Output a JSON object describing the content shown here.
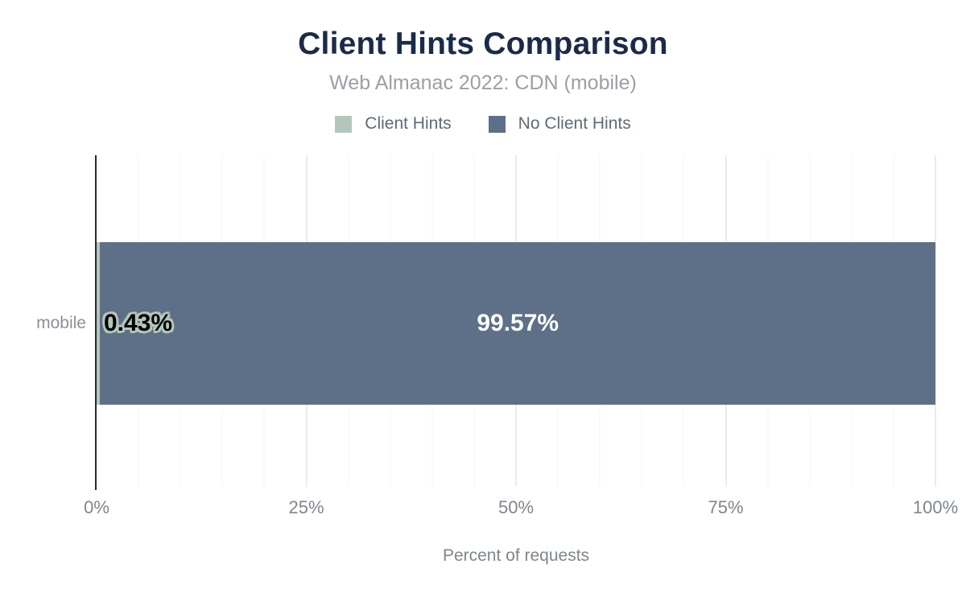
{
  "header": {
    "title": "Client Hints Comparison",
    "subtitle": "Web Almanac 2022: CDN (mobile)"
  },
  "legend": [
    {
      "label": "Client Hints",
      "color": "#b3c6bc"
    },
    {
      "label": "No Client Hints",
      "color": "#5e7087"
    }
  ],
  "chart_data": {
    "type": "bar",
    "orientation": "horizontal",
    "stacked": true,
    "title": "Client Hints Comparison",
    "subtitle": "Web Almanac 2022: CDN (mobile)",
    "categories": [
      "mobile"
    ],
    "series": [
      {
        "name": "Client Hints",
        "color": "#b3c6bc",
        "values": [
          0.43
        ],
        "labels": [
          "0.43%"
        ]
      },
      {
        "name": "No Client Hints",
        "color": "#5e7087",
        "values": [
          99.57
        ],
        "labels": [
          "99.57%"
        ]
      }
    ],
    "xlabel": "Percent of requests",
    "ylabel": "",
    "xlim": [
      0,
      100
    ],
    "xticks": [
      "0%",
      "25%",
      "50%",
      "75%",
      "100%"
    ],
    "grid": "vertical minor every 5%, major every 25%",
    "legend_position": "top",
    "colors": {
      "title": "#1a2b49",
      "subtitle": "#9aa0a6",
      "axis_line": "#26292e",
      "tick_text": "#7e868e",
      "gridline": "#f3f3f3"
    }
  }
}
